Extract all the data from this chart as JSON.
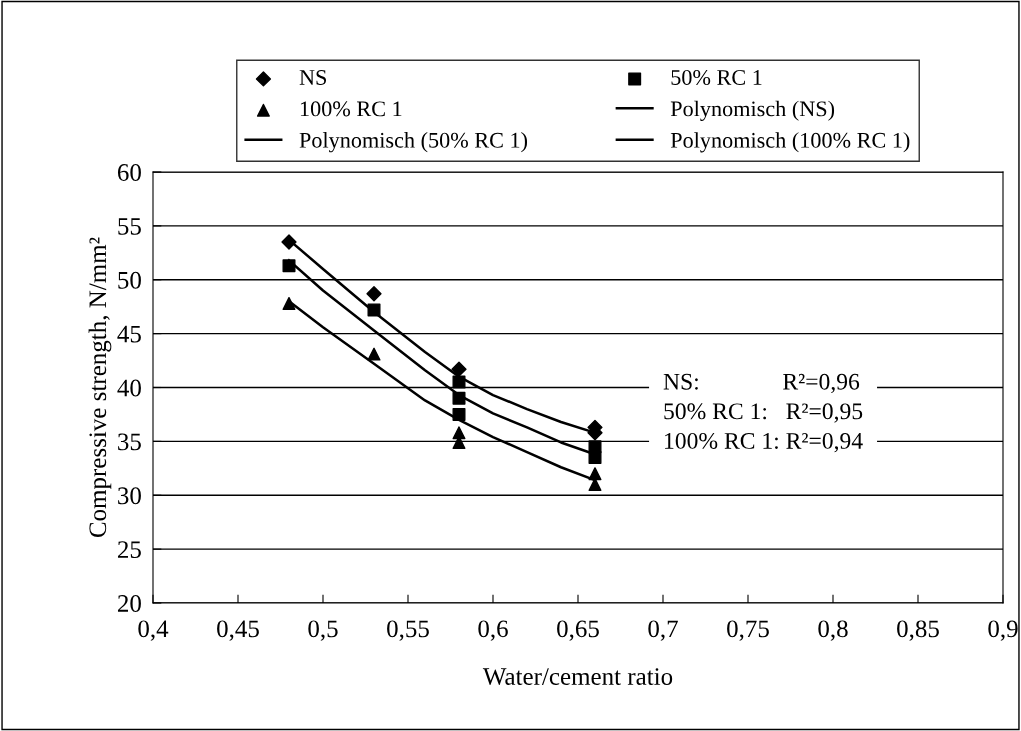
{
  "chart_data": {
    "type": "scatter",
    "xlabel": "Water/cement ratio",
    "ylabel": "Compressive strength, N/mm²",
    "xlim": [
      0.4,
      0.9
    ],
    "xticks": [
      {
        "value": 0.4,
        "label": "0,4"
      },
      {
        "value": 0.45,
        "label": "0,45"
      },
      {
        "value": 0.5,
        "label": "0,5"
      },
      {
        "value": 0.55,
        "label": "0,55"
      },
      {
        "value": 0.6,
        "label": "0,6"
      },
      {
        "value": 0.65,
        "label": "0,65"
      },
      {
        "value": 0.7,
        "label": "0,7"
      },
      {
        "value": 0.75,
        "label": "0,75"
      },
      {
        "value": 0.8,
        "label": "0,8"
      },
      {
        "value": 0.85,
        "label": "0,85"
      },
      {
        "value": 0.9,
        "label": "0,9"
      }
    ],
    "ylim": [
      20,
      60
    ],
    "yticks": [
      20,
      25,
      30,
      35,
      40,
      45,
      50,
      55,
      60
    ],
    "grid": "y",
    "legend": "top",
    "series": [
      {
        "name": "NS",
        "marker": "diamond",
        "color": "#000000",
        "x": [
          0.48,
          0.53,
          0.58,
          0.66,
          0.66
        ],
        "values": [
          53.5,
          48.7,
          41.7,
          36.3,
          35.8
        ]
      },
      {
        "name": "50% RC 1",
        "marker": "square",
        "color": "#000000",
        "x": [
          0.48,
          0.53,
          0.58,
          0.58,
          0.58,
          0.66,
          0.66
        ],
        "values": [
          51.3,
          47.2,
          40.5,
          39.0,
          37.5,
          34.5,
          33.5
        ]
      },
      {
        "name": "100% RC 1",
        "marker": "triangle",
        "color": "#000000",
        "x": [
          0.48,
          0.53,
          0.58,
          0.58,
          0.66,
          0.66
        ],
        "values": [
          47.8,
          43.1,
          35.8,
          34.9,
          32.0,
          31.0
        ]
      },
      {
        "name": "Polynomisch (NS)",
        "type": "line",
        "marker": "none",
        "line_style": "solid",
        "color": "#000000",
        "x": [
          0.48,
          0.5,
          0.53,
          0.56,
          0.58,
          0.6,
          0.62,
          0.64,
          0.66
        ],
        "values": [
          53.7,
          51.0,
          47.0,
          43.3,
          41.0,
          39.3,
          38.0,
          36.8,
          35.8
        ]
      },
      {
        "name": "Polynomisch (50% RC 1)",
        "type": "line",
        "marker": "none",
        "line_style": "solid",
        "color": "#000000",
        "x": [
          0.48,
          0.5,
          0.53,
          0.56,
          0.58,
          0.6,
          0.62,
          0.64,
          0.66
        ],
        "values": [
          51.8,
          49.0,
          45.3,
          41.6,
          39.3,
          37.6,
          36.3,
          34.9,
          33.8
        ]
      },
      {
        "name": "Polynomisch (100% RC 1)",
        "type": "line",
        "marker": "none",
        "line_style": "solid",
        "color": "#000000",
        "x": [
          0.48,
          0.5,
          0.53,
          0.56,
          0.58,
          0.6,
          0.62,
          0.64,
          0.66
        ],
        "values": [
          48.0,
          45.6,
          42.2,
          38.8,
          37.0,
          35.4,
          34.0,
          32.6,
          31.4
        ]
      }
    ],
    "annotations": [
      "NS:              R²=0,96\n50% RC 1:   R²=0,95\n100% RC 1: R²=0,94"
    ]
  }
}
